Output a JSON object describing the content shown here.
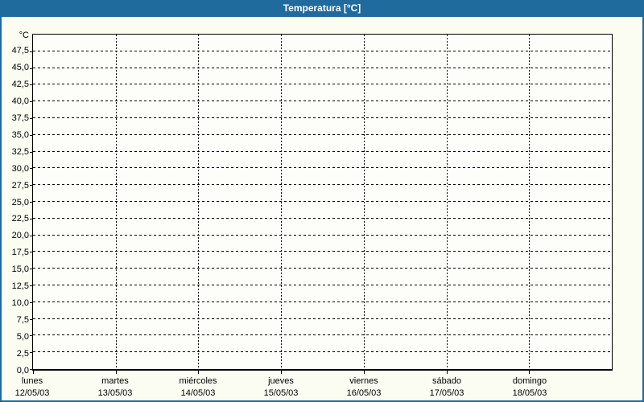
{
  "title": "Temperatura [°C]",
  "colors": {
    "titlebar": "#1f6b9d",
    "titlebar_text": "#ffffff",
    "frame": "#1f6b9d",
    "background": "#fbfdf3",
    "plot_background": "#fdfef9",
    "grid": "#000000",
    "text": "#000000"
  },
  "chart_data": {
    "type": "line",
    "title": "Temperatura [°C]",
    "ylabel": "°C",
    "xlabel": "",
    "ylim": [
      0,
      50
    ],
    "y_tick_step": 2.5,
    "y_ticks": [
      {
        "value": 47.5,
        "label": "47,5"
      },
      {
        "value": 45.0,
        "label": "45,0"
      },
      {
        "value": 42.5,
        "label": "42,5"
      },
      {
        "value": 40.0,
        "label": "40,0"
      },
      {
        "value": 37.5,
        "label": "37,5"
      },
      {
        "value": 35.0,
        "label": "35,0"
      },
      {
        "value": 32.5,
        "label": "32,5"
      },
      {
        "value": 30.0,
        "label": "30,0"
      },
      {
        "value": 27.5,
        "label": "27,5"
      },
      {
        "value": 25.0,
        "label": "25,0"
      },
      {
        "value": 22.5,
        "label": "22,5"
      },
      {
        "value": 20.0,
        "label": "20,0"
      },
      {
        "value": 17.5,
        "label": "17,5"
      },
      {
        "value": 15.0,
        "label": "15,0"
      },
      {
        "value": 12.5,
        "label": "12,5"
      },
      {
        "value": 10.0,
        "label": "10,0"
      },
      {
        "value": 7.5,
        "label": "7,5"
      },
      {
        "value": 5.0,
        "label": "5,0"
      },
      {
        "value": 2.5,
        "label": "2,5"
      },
      {
        "value": 0.0,
        "label": "0,0"
      }
    ],
    "x_days": [
      {
        "name": "lunes",
        "date": "12/05/03"
      },
      {
        "name": "martes",
        "date": "13/05/03"
      },
      {
        "name": "miércoles",
        "date": "14/05/03"
      },
      {
        "name": "jueves",
        "date": "15/05/03"
      },
      {
        "name": "viernes",
        "date": "16/05/03"
      },
      {
        "name": "sábado",
        "date": "17/05/03"
      },
      {
        "name": "domingo",
        "date": "18/05/03"
      }
    ],
    "series": [],
    "grid": {
      "horizontal": "dashed",
      "vertical": "dashed"
    },
    "legend": "none"
  }
}
